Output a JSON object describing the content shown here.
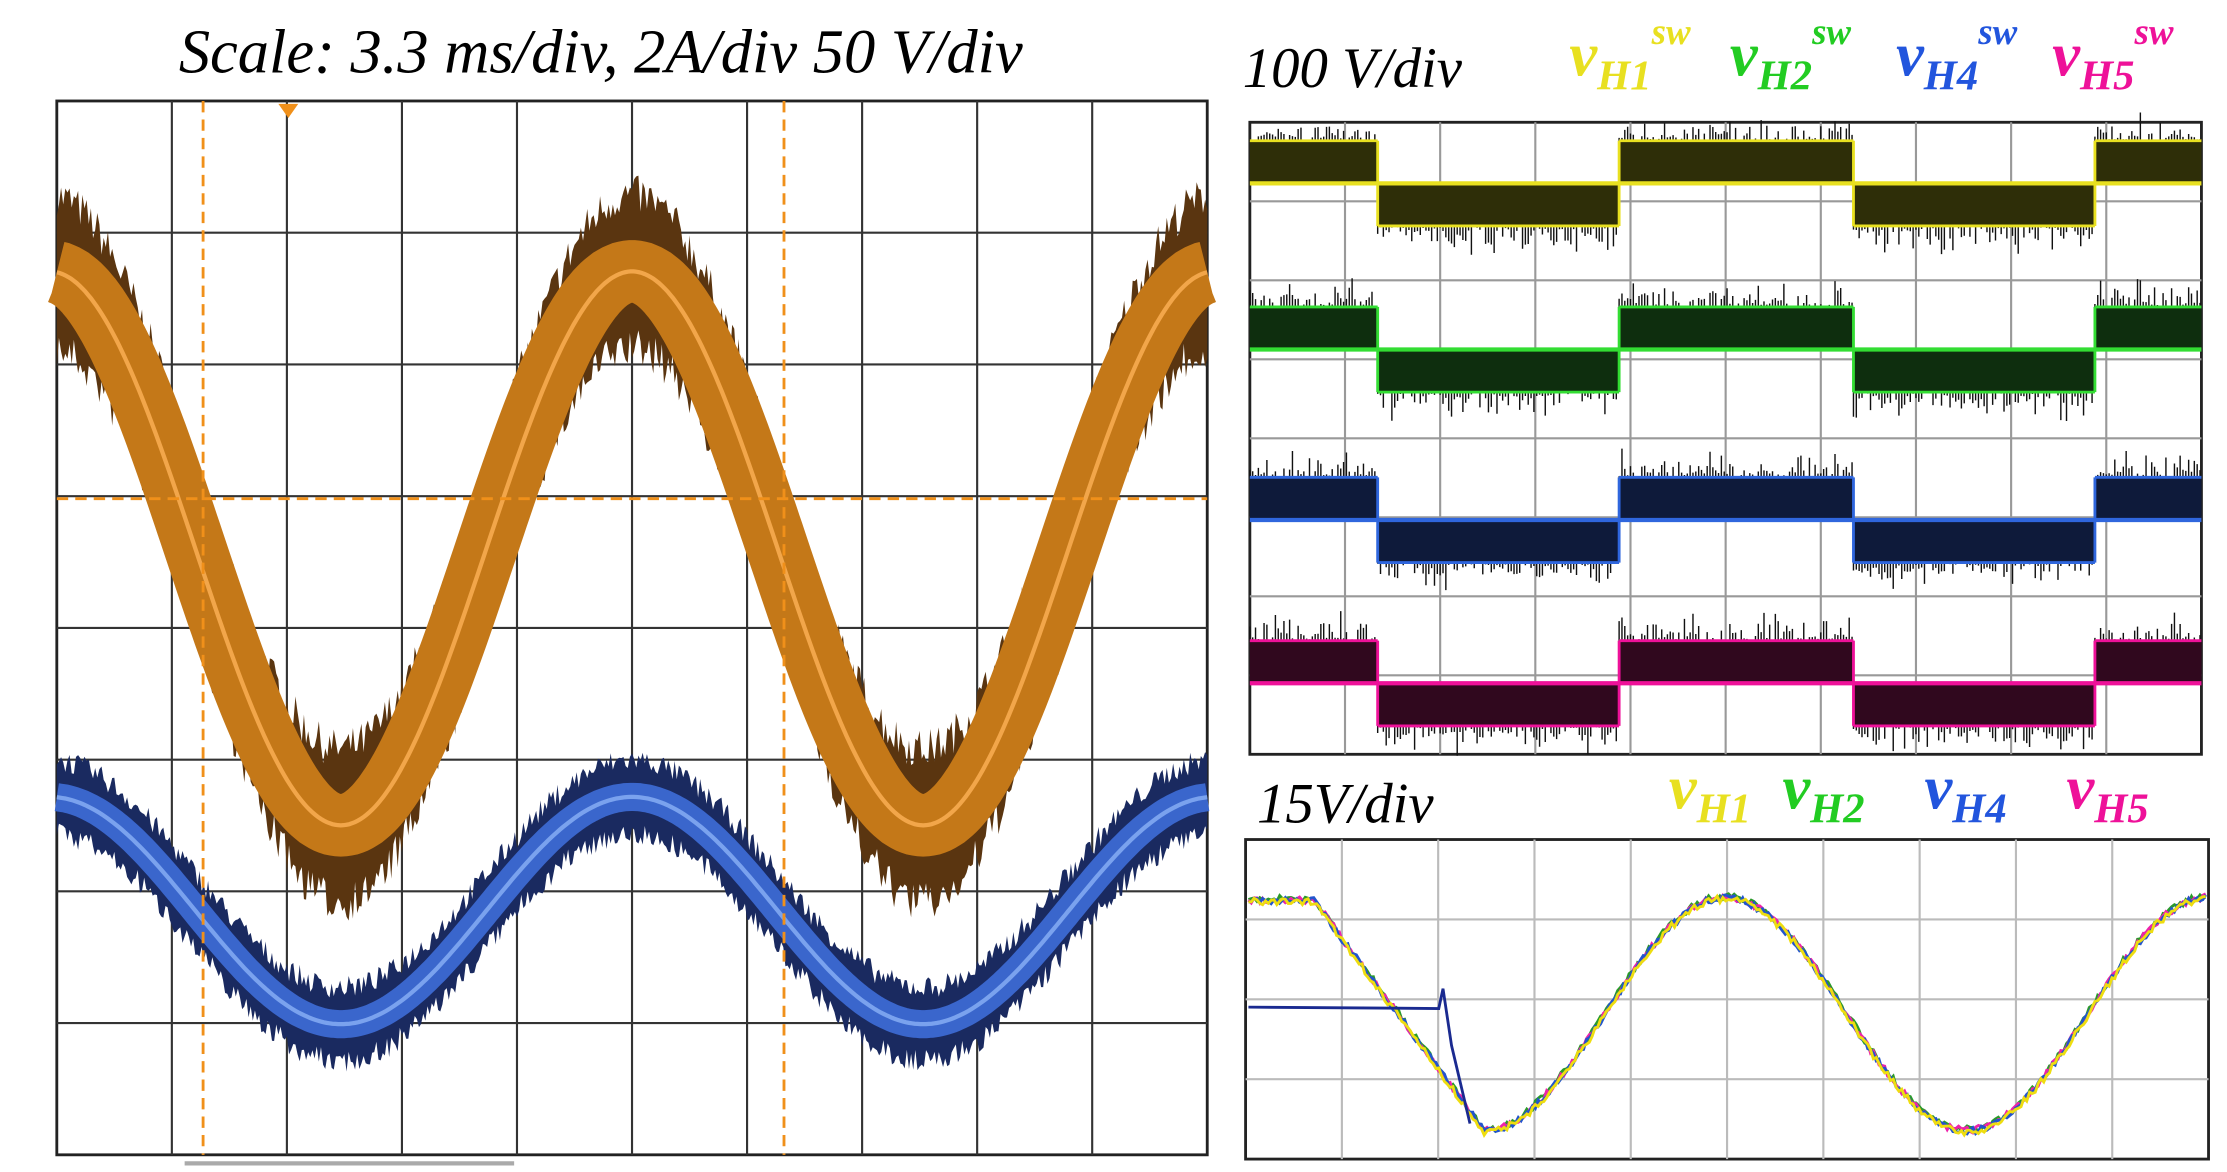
{
  "left_panel": {
    "title": "Scale: 3.3 ms/div, 2A/div 50 V/div"
  },
  "top_right_panel": {
    "scale": "100 V/div",
    "legend": [
      {
        "symbol": "v",
        "subscript": "H1",
        "superscript": "sw"
      },
      {
        "symbol": "v",
        "subscript": "H2",
        "superscript": "sw"
      },
      {
        "symbol": "v",
        "subscript": "H4",
        "superscript": "sw"
      },
      {
        "symbol": "v",
        "subscript": "H5",
        "superscript": "sw"
      }
    ]
  },
  "bottom_right_panel": {
    "scale": "15V/div",
    "legend": [
      {
        "symbol": "v",
        "subscript": "H1"
      },
      {
        "symbol": "v",
        "subscript": "H2"
      },
      {
        "symbol": "v",
        "subscript": "H4"
      },
      {
        "symbol": "v",
        "subscript": "H5"
      }
    ]
  }
}
